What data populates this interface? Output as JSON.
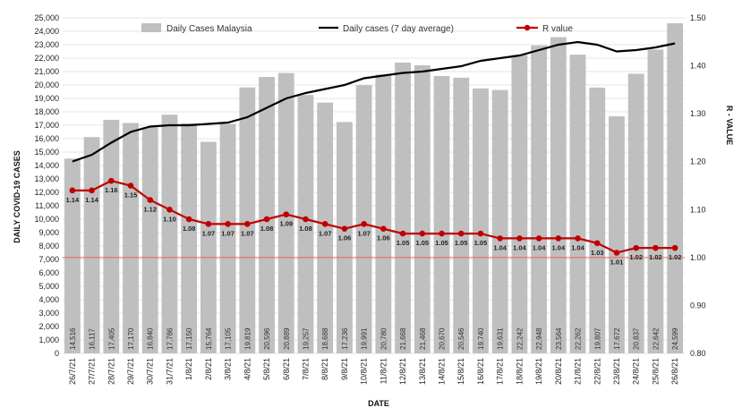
{
  "chart_data": {
    "type": "bar",
    "title": "",
    "xlabel": "DATE",
    "ylabel": "DAILY COVID-19 CASES",
    "y2label": "R - VALUE",
    "ylim": [
      0,
      25000
    ],
    "y2lim": [
      0.8,
      1.5
    ],
    "ytick_labels": [
      "0",
      "1,000",
      "2,000",
      "3,000",
      "4,000",
      "5,000",
      "6,000",
      "7,000",
      "8,000",
      "9,000",
      "10,000",
      "11,000",
      "12,000",
      "13,000",
      "14,000",
      "15,000",
      "16,000",
      "17,000",
      "18,000",
      "19,000",
      "20,000",
      "21,000",
      "22,000",
      "23,000",
      "24,000",
      "25,000"
    ],
    "y2tick_labels": [
      "0.80",
      "0.90",
      "1.00",
      "1.10",
      "1.20",
      "1.30",
      "1.40",
      "1.50"
    ],
    "categories": [
      "26/7/21",
      "27/7/21",
      "28/7/21",
      "29/7/21",
      "30/7/21",
      "31/7/21",
      "1/8/21",
      "2/8/21",
      "3/8/21",
      "4/8/21",
      "5/8/21",
      "6/8/21",
      "7/8/21",
      "8/8/21",
      "9/8/21",
      "10/8/21",
      "11/8/21",
      "12/8/21",
      "13/8/21",
      "14/8/21",
      "15/8/21",
      "16/8/21",
      "17/8/21",
      "18/8/21",
      "19/8/21",
      "20/8/21",
      "21/8/21",
      "22/8/21",
      "23/8/21",
      "24/8/21",
      "25/8/21",
      "26/8/21"
    ],
    "series": [
      {
        "name": "Daily Cases Malaysia",
        "kind": "bar",
        "axis": "left",
        "color": "#bfbfbf",
        "values": [
          14516,
          16117,
          17405,
          17170,
          16840,
          17786,
          17150,
          15764,
          17105,
          19819,
          20596,
          20889,
          19257,
          18688,
          17236,
          19991,
          20780,
          21668,
          21468,
          20670,
          20546,
          19740,
          19631,
          22242,
          22948,
          23564,
          22262,
          19807,
          17672,
          20837,
          22642,
          24599
        ],
        "labels": [
          "14,516",
          "16,117",
          "17,405",
          "17,170",
          "16,840",
          "17,786",
          "17,150",
          "15,764",
          "17,105",
          "19,819",
          "20,596",
          "20,889",
          "19,257",
          "18,688",
          "17,236",
          "19,991",
          "20,780",
          "21,668",
          "21,468",
          "20,670",
          "20,546",
          "19,740",
          "19,631",
          "22,242",
          "22,948",
          "23,564",
          "22,262",
          "19,807",
          "17,672",
          "20,837",
          "22,642",
          "24,599"
        ]
      },
      {
        "name": "Daily cases (7 day average)",
        "kind": "line",
        "axis": "left",
        "color": "#000000",
        "values": [
          14300,
          14800,
          15700,
          16500,
          16900,
          17000,
          17000,
          17100,
          17200,
          17600,
          18300,
          19000,
          19400,
          19700,
          20000,
          20500,
          20700,
          20900,
          21000,
          21200,
          21400,
          21800,
          22000,
          22200,
          22600,
          23000,
          23200,
          23000,
          22500,
          22600,
          22800,
          23100
        ]
      },
      {
        "name": "R value",
        "kind": "line",
        "axis": "right",
        "color": "#c00000",
        "values": [
          1.14,
          1.14,
          1.16,
          1.15,
          1.12,
          1.1,
          1.08,
          1.07,
          1.07,
          1.07,
          1.08,
          1.09,
          1.08,
          1.07,
          1.06,
          1.07,
          1.06,
          1.05,
          1.05,
          1.05,
          1.05,
          1.05,
          1.04,
          1.04,
          1.04,
          1.04,
          1.04,
          1.03,
          1.01,
          1.02,
          1.02,
          1.02
        ],
        "labels": [
          "1.14",
          "1.14",
          "1.16",
          "1.15",
          "1.12",
          "1.10",
          "1.08",
          "1.07",
          "1.07",
          "1.07",
          "1.08",
          "1.09",
          "1.08",
          "1.07",
          "1.06",
          "1.07",
          "1.06",
          "1.05",
          "1.05",
          "1.05",
          "1.05",
          "1.05",
          "1.04",
          "1.04",
          "1.04",
          "1.04",
          "1.04",
          "1.03",
          "1.01",
          "1.02",
          "1.02",
          "1.02"
        ]
      }
    ],
    "reference_line": {
      "axis": "right",
      "value": 1.0,
      "color": "#e06666"
    },
    "legend": {
      "position": "top"
    }
  }
}
